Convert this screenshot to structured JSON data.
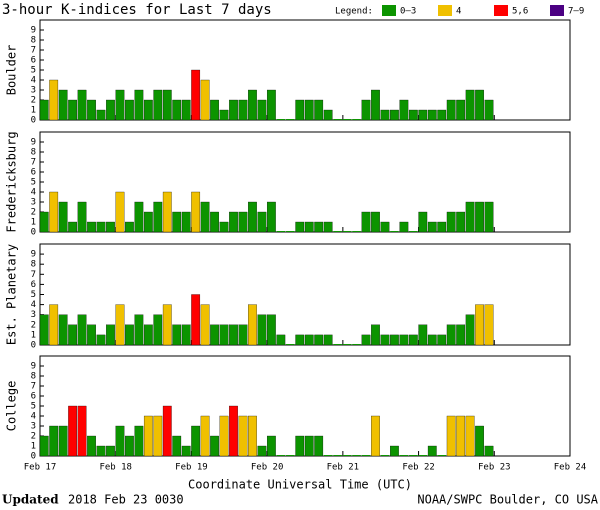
{
  "title": "3-hour K-indices for Last 7 days",
  "legend": {
    "title": "Legend:",
    "items": [
      {
        "label": "0–3",
        "color": "#0c9400"
      },
      {
        "label": "4",
        "color": "#f0c000"
      },
      {
        "label": "5,6",
        "color": "#ff0000"
      },
      {
        "label": "7–9",
        "color": "#4b0082"
      }
    ]
  },
  "xticks": [
    "Feb 17",
    "Feb 18",
    "Feb 19",
    "Feb 20",
    "Feb 21",
    "Feb 22",
    "Feb 23",
    "Feb 24"
  ],
  "xlabel": "Coordinate Universal Time (UTC)",
  "footer": {
    "bold": "Updated",
    "text": "2018 Feb 23 0030",
    "credit": "NOAA/SWPC Boulder, CO USA"
  },
  "chart_data": [
    {
      "type": "bar",
      "ylabel": "Boulder",
      "ylim": [
        0,
        10
      ],
      "yticks": [
        0,
        1,
        2,
        3,
        4,
        5,
        6,
        7,
        8,
        9
      ],
      "values": [
        2,
        4,
        3,
        2,
        3,
        2,
        1,
        2,
        3,
        2,
        3,
        2,
        3,
        3,
        2,
        2,
        5,
        4,
        2,
        1,
        2,
        2,
        3,
        2,
        3,
        0,
        0,
        2,
        2,
        2,
        1,
        0,
        0,
        0,
        2,
        3,
        1,
        1,
        2,
        1,
        1,
        1,
        1,
        2,
        2,
        3,
        3,
        2
      ]
    },
    {
      "type": "bar",
      "ylabel": "Fredericksburg",
      "ylim": [
        0,
        10
      ],
      "yticks": [
        0,
        1,
        2,
        3,
        4,
        5,
        6,
        7,
        8,
        9
      ],
      "values": [
        2,
        4,
        3,
        1,
        3,
        1,
        1,
        1,
        4,
        1,
        3,
        2,
        3,
        4,
        2,
        2,
        4,
        3,
        2,
        1,
        2,
        2,
        3,
        2,
        3,
        0,
        0,
        1,
        1,
        1,
        1,
        0,
        0,
        0,
        2,
        2,
        1,
        0,
        1,
        0,
        2,
        1,
        1,
        2,
        2,
        3,
        3,
        3
      ]
    },
    {
      "type": "bar",
      "ylabel": "Est. Planetary",
      "ylim": [
        0,
        10
      ],
      "yticks": [
        0,
        1,
        2,
        3,
        4,
        5,
        6,
        7,
        8,
        9
      ],
      "values": [
        3,
        4,
        3,
        2,
        3,
        2,
        1,
        2,
        4,
        2,
        3,
        2,
        3,
        4,
        2,
        2,
        5,
        4,
        2,
        2,
        2,
        2,
        4,
        3,
        3,
        1,
        0,
        1,
        1,
        1,
        1,
        0,
        0,
        0,
        1,
        2,
        1,
        1,
        1,
        1,
        2,
        1,
        1,
        2,
        2,
        3,
        4,
        4
      ]
    },
    {
      "type": "bar",
      "ylabel": "College",
      "ylim": [
        0,
        10
      ],
      "yticks": [
        0,
        1,
        2,
        3,
        4,
        5,
        6,
        7,
        8,
        9
      ],
      "values": [
        2,
        3,
        3,
        5,
        5,
        2,
        1,
        1,
        3,
        2,
        3,
        4,
        4,
        5,
        2,
        1,
        3,
        4,
        2,
        4,
        5,
        4,
        4,
        1,
        2,
        0,
        0,
        2,
        2,
        2,
        0,
        0,
        0,
        0,
        0,
        4,
        0,
        1,
        0,
        0,
        0,
        1,
        0,
        4,
        4,
        4,
        3,
        1
      ]
    }
  ]
}
